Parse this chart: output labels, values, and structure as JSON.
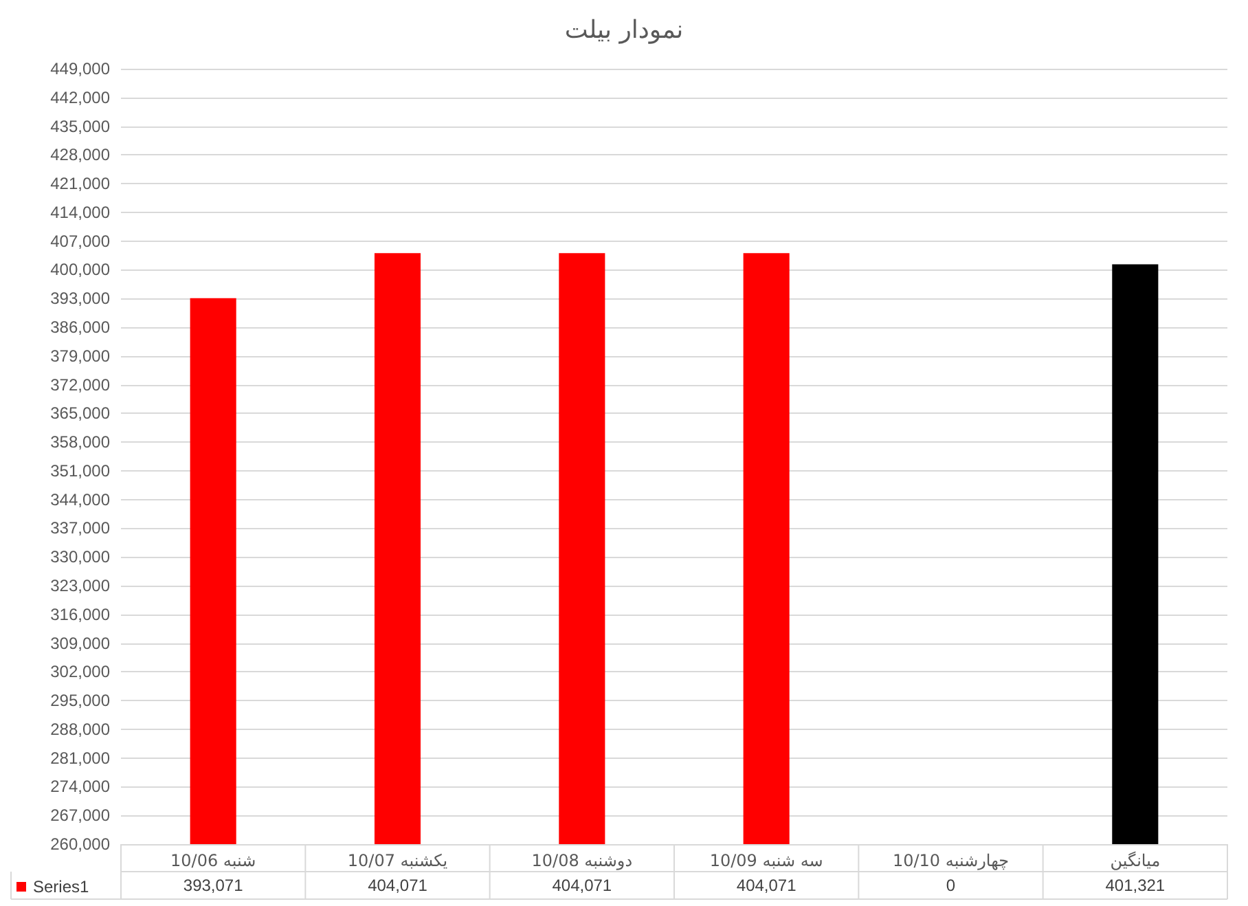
{
  "chart_data": {
    "type": "bar",
    "title": "نمودار بیلت",
    "categories": [
      "شنبه 10/06",
      "یکشنبه 10/07",
      "دوشنبه 10/08",
      "سه شنبه 10/09",
      "چهارشنبه 10/10",
      "میانگین"
    ],
    "series": [
      {
        "name": "Series1",
        "color": "#ff0000",
        "colors": [
          "#ff0000",
          "#ff0000",
          "#ff0000",
          "#ff0000",
          "#ff0000",
          "#000000"
        ],
        "values": [
          393071,
          404071,
          404071,
          404071,
          null,
          401321
        ],
        "value_labels": [
          "393,071",
          "404,071",
          "404,071",
          "404,071",
          "0",
          "401,321"
        ]
      }
    ],
    "ylim": [
      260000,
      449000
    ],
    "yticks": [
      {
        "value": 260000,
        "label": "260,000"
      },
      {
        "value": 267000,
        "label": "267,000"
      },
      {
        "value": 274000,
        "label": "274,000"
      },
      {
        "value": 281000,
        "label": "281,000"
      },
      {
        "value": 288000,
        "label": "288,000"
      },
      {
        "value": 295000,
        "label": "295,000"
      },
      {
        "value": 302000,
        "label": "302,000"
      },
      {
        "value": 309000,
        "label": "309,000"
      },
      {
        "value": 316000,
        "label": "316,000"
      },
      {
        "value": 323000,
        "label": "323,000"
      },
      {
        "value": 330000,
        "label": "330,000"
      },
      {
        "value": 337000,
        "label": "337,000"
      },
      {
        "value": 344000,
        "label": "344,000"
      },
      {
        "value": 351000,
        "label": "351,000"
      },
      {
        "value": 358000,
        "label": "358,000"
      },
      {
        "value": 365000,
        "label": "365,000"
      },
      {
        "value": 372000,
        "label": "372,000"
      },
      {
        "value": 379000,
        "label": "379,000"
      },
      {
        "value": 386000,
        "label": "386,000"
      },
      {
        "value": 393000,
        "label": "393,000"
      },
      {
        "value": 400000,
        "label": "400,000"
      },
      {
        "value": 407000,
        "label": "407,000"
      },
      {
        "value": 414000,
        "label": "414,000"
      },
      {
        "value": 421000,
        "label": "421,000"
      },
      {
        "value": 428000,
        "label": "428,000"
      },
      {
        "value": 435000,
        "label": "435,000"
      },
      {
        "value": 442000,
        "label": "442,000"
      },
      {
        "value": 449000,
        "label": "449,000"
      }
    ],
    "grid": true,
    "legend": "bottom left"
  }
}
